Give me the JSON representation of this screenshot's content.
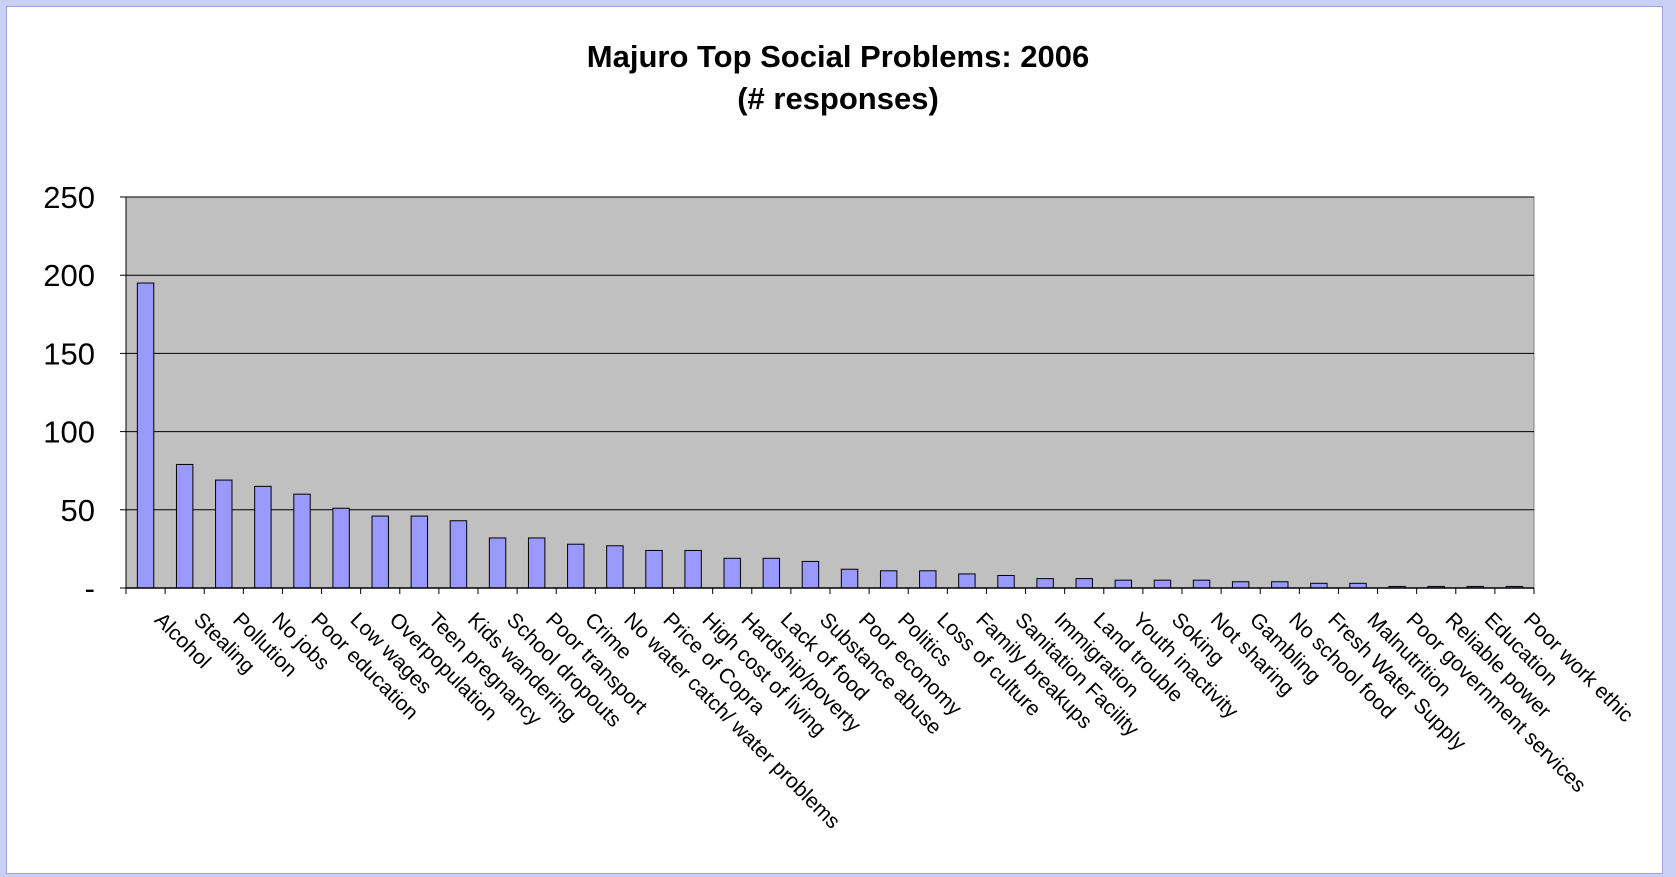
{
  "chart_data": {
    "type": "bar",
    "title": "Majuro Top Social Problems: 2006",
    "subtitle": "(# responses)",
    "xlabel": "",
    "ylabel": "",
    "ylim": [
      0,
      250
    ],
    "yticks": [
      0,
      50,
      100,
      150,
      200,
      250
    ],
    "ytick_labels": [
      "-",
      "50",
      "100",
      "150",
      "200",
      "250"
    ],
    "grid": true,
    "legend": "none",
    "colors": {
      "bar": "#9999ff",
      "plot_bg": "#c0c0c0",
      "grid": "#000000",
      "page_bg": "#c9d0f5"
    },
    "categories": [
      "Alcohol",
      "Stealing",
      "Pollution",
      "No jobs",
      "Poor education",
      "Low wages",
      "Overpopulation",
      "Teen pregnancy",
      "Kids wandering",
      "School dropouts",
      "Poor transport",
      "Crime",
      "No water catch/ water problems",
      "Price of Copra",
      "High cost of living",
      "Hardship/poverty",
      "Lack of food",
      "Substance abuse",
      "Poor economy",
      "Politics",
      "Loss of culture",
      "Family breakups",
      "Sanitation Facility",
      "Immigration",
      "Land trouble",
      "Youth inactivity",
      "Soking",
      "Not sharing",
      "Gambling",
      "No school food",
      "Fresh Water Supply",
      "Malnutrition",
      "Poor government services",
      "Reliable power",
      "Education",
      "Poor work ethic"
    ],
    "values": [
      195,
      79,
      69,
      65,
      60,
      51,
      46,
      46,
      43,
      32,
      32,
      28,
      27,
      24,
      24,
      19,
      19,
      17,
      12,
      11,
      11,
      9,
      8,
      6,
      6,
      5,
      5,
      5,
      4,
      4,
      3,
      3,
      1,
      1,
      1,
      1
    ]
  }
}
